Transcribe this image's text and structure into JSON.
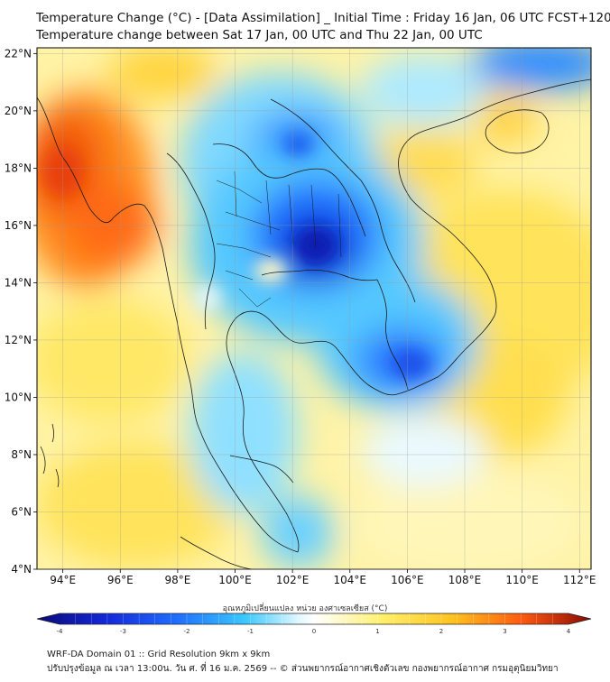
{
  "header": {
    "title_line1": "Temperature Change (°C) - [Data Assimilation] _ Initial Time : Friday 16 Jan, 06 UTC FCST+120",
    "title_line2": "Temperature change between Sat 17 Jan, 00 UTC and Thu 22 Jan, 00 UTC"
  },
  "map": {
    "lat_labels": [
      "22°N",
      "20°N",
      "18°N",
      "16°N",
      "14°N",
      "12°N",
      "10°N",
      "8°N",
      "6°N",
      "4°N"
    ],
    "lon_labels": [
      "94°E",
      "96°E",
      "98°E",
      "100°E",
      "102°E",
      "104°E",
      "106°E",
      "108°E",
      "110°E",
      "112°E"
    ],
    "lat_values": [
      22,
      20,
      18,
      16,
      14,
      12,
      10,
      8,
      6,
      4
    ],
    "lon_values": [
      94,
      96,
      98,
      100,
      102,
      104,
      106,
      108,
      110,
      112
    ],
    "lat_range": [
      4,
      22.2
    ],
    "lon_range": [
      93.1,
      112.4
    ]
  },
  "colorbar": {
    "title": "อุณหภูมิเปลี่ยนแปลง หน่วย องศาเซลเซียส (°C)",
    "tick_labels": [
      "-4",
      "-3",
      "-2",
      "-1",
      "0",
      "1",
      "2",
      "3",
      "4"
    ],
    "range": [
      -4,
      4
    ]
  },
  "footer": {
    "line1": "WRF-DA Domain 01 :: Grid Resolution 9km x 9km",
    "line2": "ปรับปรุงข้อมูล ณ เวลา 13:00น. วัน ศ. ที่ 16 ม.ค. 2569 -- © ส่วนพยากรณ์อากาศเชิงตัวเลข กองพยากรณ์อากาศ กรมอุตุนิยมวิทยา"
  },
  "colors": {
    "land_outline": "#222222",
    "neutral": "#ffffff",
    "warm_light": "#fff3a0",
    "warm_mid": "#ffd23f",
    "warm_strong": "#ff7a1a",
    "warm_max": "#e83a10",
    "cool_light": "#c8f0ff",
    "cool_mid": "#39c8ff",
    "cool_strong": "#1f6dff",
    "cool_max": "#0f1fc8"
  }
}
